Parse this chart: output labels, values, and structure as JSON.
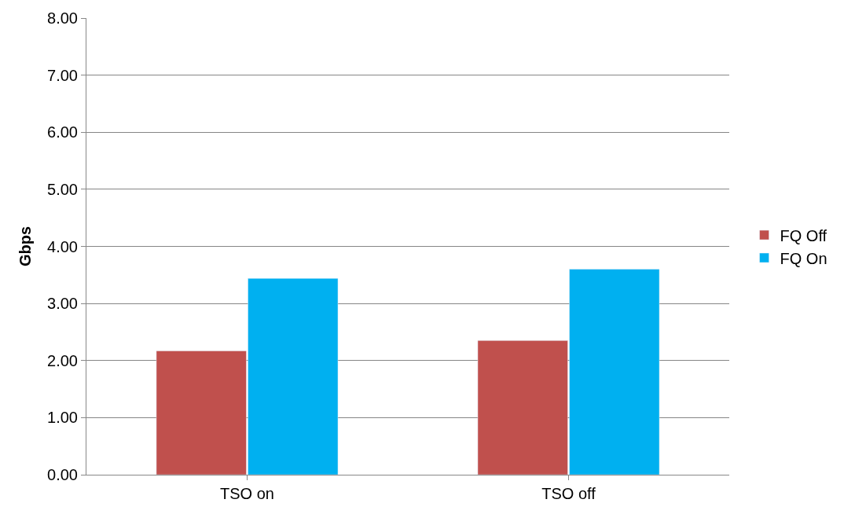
{
  "chart_data": {
    "type": "bar",
    "ylabel": "Gbps",
    "categories": [
      "TSO on",
      "TSO off"
    ],
    "series": [
      {
        "name": "FQ Off",
        "color": "#c0504d",
        "values": [
          2.17,
          2.35
        ]
      },
      {
        "name": "FQ On",
        "color": "#00b0f0",
        "values": [
          3.44,
          3.6
        ]
      }
    ],
    "ylim": [
      0,
      8
    ],
    "yticks": [
      {
        "value": 0,
        "label": "0.00"
      },
      {
        "value": 1,
        "label": "1.00"
      },
      {
        "value": 2,
        "label": "2.00"
      },
      {
        "value": 3,
        "label": "3.00"
      },
      {
        "value": 4,
        "label": "4.00"
      },
      {
        "value": 5,
        "label": "5.00"
      },
      {
        "value": 6,
        "label": "6.00"
      },
      {
        "value": 7,
        "label": "7.00"
      },
      {
        "value": 8,
        "label": "8.00"
      }
    ],
    "grid": "y",
    "legend": "right"
  }
}
